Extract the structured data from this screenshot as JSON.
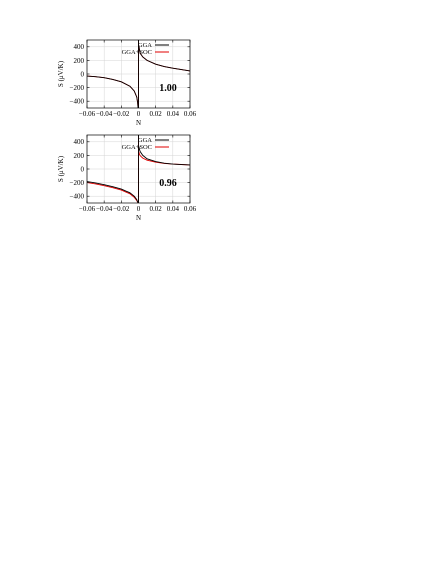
{
  "chart_data": [
    {
      "type": "line",
      "panel_label": "1.00",
      "xlabel": "N",
      "ylabel": "S (μV/K)",
      "xlim": [
        -0.06,
        0.06
      ],
      "ylim": [
        -500,
        500
      ],
      "xticks": [
        -0.06,
        -0.04,
        -0.02,
        0,
        0.02,
        0.04,
        0.06
      ],
      "xtick_labels": [
        "−0.06",
        "−0.04",
        "−0.02",
        "0",
        "0.02",
        "0.04",
        "0.06"
      ],
      "yticks": [
        -400,
        -200,
        0,
        200,
        400
      ],
      "ytick_labels": [
        "−400",
        "−200",
        "0",
        "200",
        "400"
      ],
      "grid": true,
      "legend": "top-right",
      "series": [
        {
          "name": "GGA",
          "color": "#000000",
          "negative": [
            [
              -0.06,
              -30
            ],
            [
              -0.05,
              -40
            ],
            [
              -0.04,
              -55
            ],
            [
              -0.03,
              -80
            ],
            [
              -0.02,
              -115
            ],
            [
              -0.01,
              -180
            ],
            [
              -0.005,
              -250
            ],
            [
              -0.002,
              -340
            ],
            [
              -0.001,
              -420
            ],
            [
              -0.0005,
              -500
            ]
          ],
          "positive": [
            [
              0.0005,
              420
            ],
            [
              0.001,
              360
            ],
            [
              0.002,
              305
            ],
            [
              0.005,
              250
            ],
            [
              0.01,
              200
            ],
            [
              0.02,
              145
            ],
            [
              0.03,
              110
            ],
            [
              0.04,
              85
            ],
            [
              0.05,
              65
            ],
            [
              0.06,
              45
            ]
          ]
        },
        {
          "name": "GGA+SOC",
          "color": "#e00000",
          "negative": [
            [
              -0.06,
              -30
            ],
            [
              -0.05,
              -40
            ],
            [
              -0.04,
              -55
            ],
            [
              -0.03,
              -80
            ],
            [
              -0.02,
              -115
            ],
            [
              -0.01,
              -180
            ],
            [
              -0.005,
              -250
            ],
            [
              -0.002,
              -340
            ],
            [
              -0.001,
              -420
            ],
            [
              -0.0005,
              -500
            ]
          ],
          "positive": [
            [
              0.0005,
              420
            ],
            [
              0.001,
              360
            ],
            [
              0.002,
              305
            ],
            [
              0.005,
              250
            ],
            [
              0.01,
              200
            ],
            [
              0.02,
              145
            ],
            [
              0.03,
              110
            ],
            [
              0.04,
              85
            ],
            [
              0.05,
              65
            ],
            [
              0.06,
              45
            ]
          ]
        }
      ]
    },
    {
      "type": "line",
      "panel_label": "0.96",
      "xlabel": "N",
      "ylabel": "S (μV/K)",
      "xlim": [
        -0.06,
        0.06
      ],
      "ylim": [
        -500,
        500
      ],
      "xticks": [
        -0.06,
        -0.04,
        -0.02,
        0,
        0.02,
        0.04,
        0.06
      ],
      "xtick_labels": [
        "−0.06",
        "−0.04",
        "−0.02",
        "0",
        "0.02",
        "0.04",
        "0.06"
      ],
      "yticks": [
        -400,
        -200,
        0,
        200,
        400
      ],
      "ytick_labels": [
        "−400",
        "−200",
        "0",
        "200",
        "400"
      ],
      "grid": true,
      "legend": "top-right",
      "series": [
        {
          "name": "GGA",
          "color": "#000000",
          "negative": [
            [
              -0.06,
              -185
            ],
            [
              -0.05,
              -205
            ],
            [
              -0.04,
              -230
            ],
            [
              -0.03,
              -260
            ],
            [
              -0.02,
              -295
            ],
            [
              -0.01,
              -350
            ],
            [
              -0.005,
              -400
            ],
            [
              -0.002,
              -450
            ],
            [
              -0.0005,
              -500
            ]
          ],
          "positive": [
            [
              0.0005,
              330
            ],
            [
              0.001,
              290
            ],
            [
              0.002,
              255
            ],
            [
              0.005,
              200
            ],
            [
              0.01,
              150
            ],
            [
              0.02,
              110
            ],
            [
              0.03,
              85
            ],
            [
              0.04,
              72
            ],
            [
              0.05,
              65
            ],
            [
              0.06,
              60
            ]
          ]
        },
        {
          "name": "GGA+SOC",
          "color": "#e00000",
          "negative": [
            [
              -0.06,
              -200
            ],
            [
              -0.05,
              -220
            ],
            [
              -0.04,
              -245
            ],
            [
              -0.03,
              -275
            ],
            [
              -0.02,
              -310
            ],
            [
              -0.01,
              -365
            ],
            [
              -0.005,
              -415
            ],
            [
              -0.002,
              -465
            ],
            [
              -0.0005,
              -500
            ]
          ],
          "positive": [
            [
              0.0005,
              250
            ],
            [
              0.001,
              220
            ],
            [
              0.002,
              195
            ],
            [
              0.005,
              160
            ],
            [
              0.01,
              130
            ],
            [
              0.02,
              100
            ],
            [
              0.03,
              82
            ],
            [
              0.04,
              72
            ],
            [
              0.05,
              66
            ],
            [
              0.06,
              60
            ]
          ]
        }
      ]
    }
  ]
}
